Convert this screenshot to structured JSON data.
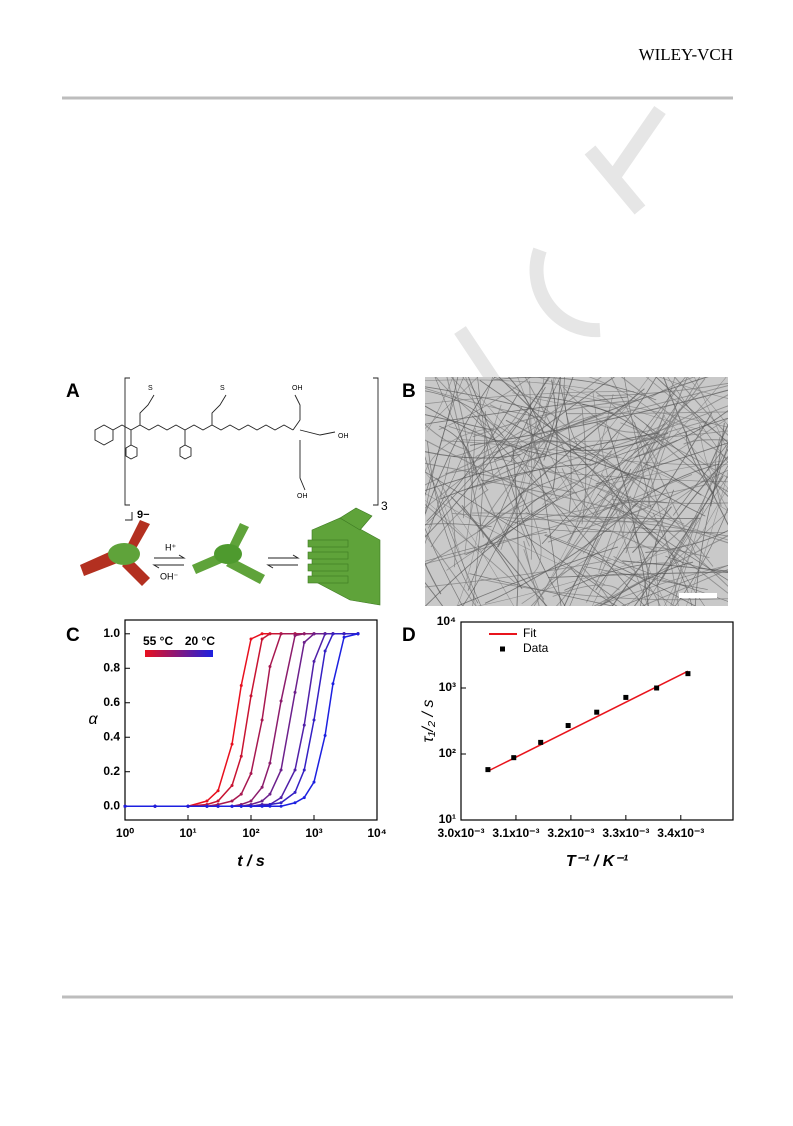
{
  "header": {
    "publisher": "WILEY-VCH"
  },
  "figure": {
    "panel_labels": [
      "A",
      "B",
      "C",
      "D"
    ],
    "panel_a": {
      "atoms": [
        "S",
        "S",
        "OH",
        "OH",
        "OH"
      ],
      "repeat": "3",
      "charge": "9−",
      "acid": "H⁺",
      "base": "OH⁻"
    }
  },
  "chart_data": [
    {
      "type": "line",
      "xscale": "log",
      "x_label": "t / s",
      "y_label": "α",
      "x": [
        1,
        3,
        10,
        20,
        30,
        50,
        70,
        100,
        150,
        200,
        300,
        500,
        700,
        1000,
        1500,
        2000,
        3000,
        5000
      ],
      "xlim": [
        1,
        10000
      ],
      "xticks": [
        {
          "value": 1,
          "label": "10⁰"
        },
        {
          "value": 10,
          "label": "10¹"
        },
        {
          "value": 100,
          "label": "10²"
        },
        {
          "value": 1000,
          "label": "10³"
        },
        {
          "value": 10000,
          "label": "10⁴"
        }
      ],
      "ylim": [
        -0.08,
        1.08
      ],
      "yticks": [
        {
          "value": 0,
          "label": "0.0"
        },
        0.2,
        0.4,
        0.6,
        0.8,
        {
          "value": 1,
          "label": "1.0"
        }
      ],
      "colorbar": {
        "labels": [
          "55 °C",
          "20 °C"
        ]
      },
      "series": [
        {
          "color": "#e8101e",
          "marker": "circle",
          "line": true,
          "values": [
            0,
            0,
            0,
            0.03,
            0.09,
            0.36,
            0.7,
            0.97,
            1,
            1,
            1,
            1,
            1,
            1,
            1,
            1,
            1,
            1
          ]
        },
        {
          "color": "#c81432",
          "marker": "circle",
          "line": true,
          "values": [
            0,
            0,
            0,
            0.01,
            0.03,
            0.12,
            0.29,
            0.64,
            0.97,
            1,
            1,
            1,
            1,
            1,
            1,
            1,
            1,
            1
          ]
        },
        {
          "color": "#a81850",
          "marker": "circle",
          "line": true,
          "values": [
            0,
            0,
            0,
            0,
            0.01,
            0.03,
            0.07,
            0.19,
            0.5,
            0.81,
            1,
            1,
            1,
            1,
            1,
            1,
            1,
            1
          ]
        },
        {
          "color": "#8c1c6c",
          "marker": "circle",
          "line": true,
          "values": [
            0,
            0,
            0,
            0,
            0,
            0,
            0.01,
            0.03,
            0.11,
            0.25,
            0.61,
            0.99,
            1,
            1,
            1,
            1,
            1,
            1
          ]
        },
        {
          "color": "#6c208c",
          "marker": "circle",
          "line": true,
          "values": [
            0,
            0,
            0,
            0,
            0,
            0,
            0,
            0.01,
            0.03,
            0.07,
            0.21,
            0.66,
            0.95,
            1,
            1,
            1,
            1,
            1
          ]
        },
        {
          "color": "#5020a8",
          "marker": "circle",
          "line": true,
          "values": [
            0,
            0,
            0,
            0,
            0,
            0,
            0,
            0,
            0.01,
            0.01,
            0.05,
            0.21,
            0.47,
            0.84,
            1,
            1,
            1,
            1
          ]
        },
        {
          "color": "#3420c4",
          "marker": "circle",
          "line": true,
          "values": [
            0,
            0,
            0,
            0,
            0,
            0,
            0,
            0,
            0,
            0.01,
            0.02,
            0.08,
            0.21,
            0.5,
            0.9,
            1,
            1,
            1
          ]
        },
        {
          "color": "#1c20e0",
          "marker": "circle",
          "line": true,
          "values": [
            0,
            0,
            0,
            0,
            0,
            0,
            0,
            0,
            0,
            0,
            0,
            0.02,
            0.05,
            0.14,
            0.41,
            0.71,
            0.98,
            1
          ]
        }
      ]
    },
    {
      "type": "scatter",
      "yscale": "log",
      "x_label": "T⁻¹ / K⁻¹",
      "y_label": "τ₁/₂ / s",
      "legend": "upper left",
      "xlim": [
        0.003,
        0.003495
      ],
      "xticks": [
        {
          "value": 0.003,
          "label": "3.0x10⁻³"
        },
        {
          "value": 0.0031,
          "label": "3.1x10⁻³"
        },
        {
          "value": 0.0032,
          "label": "3.2x10⁻³"
        },
        {
          "value": 0.0033,
          "label": "3.3x10⁻³"
        },
        {
          "value": 0.0034,
          "label": "3.4x10⁻³"
        }
      ],
      "ylim": [
        10,
        10000
      ],
      "yticks": [
        {
          "value": 10,
          "label": "10¹"
        },
        {
          "value": 100,
          "label": "10²"
        },
        {
          "value": 1000,
          "label": "10³"
        },
        {
          "value": 10000,
          "label": "10⁴"
        }
      ],
      "series": [
        {
          "name": "Fit",
          "color": "#e8141c",
          "line": true,
          "x": [
            0.003049,
            0.003413
          ],
          "values": [
            55,
            1800
          ]
        },
        {
          "name": "Data",
          "color": "#000000",
          "marker": "square",
          "x": [
            0.003049,
            0.003096,
            0.003145,
            0.003195,
            0.003247,
            0.0033,
            0.003356,
            0.003413
          ],
          "values": [
            58,
            88,
            150,
            270,
            430,
            720,
            1000,
            1650
          ]
        }
      ]
    }
  ]
}
